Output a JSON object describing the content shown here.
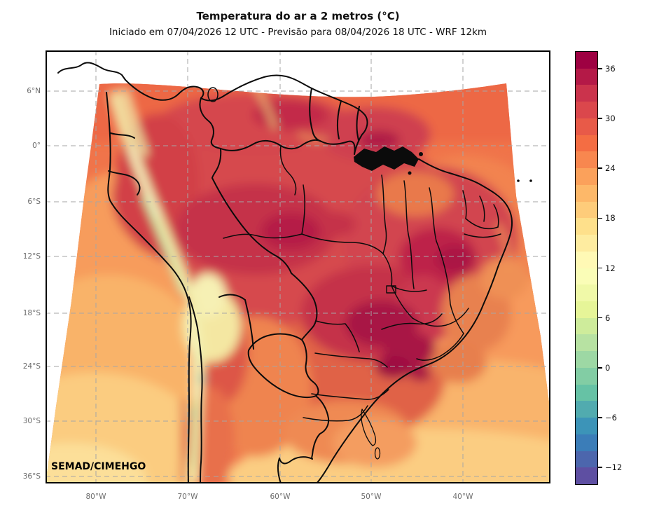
{
  "title": "Temperatura do ar a 2 metros (°C)",
  "subtitle": "Iniciado em 07/04/2026 12 UTC - Previsão para 08/04/2026 18 UTC - WRF 12km",
  "watermark": "SEMAD/CIMEHGO",
  "axes": {
    "lat_ticks": [
      "6°N",
      "0°",
      "6°S",
      "12°S",
      "18°S",
      "24°S",
      "30°S",
      "36°S"
    ],
    "lon_ticks": [
      "80°W",
      "70°W",
      "60°W",
      "50°W",
      "40°W"
    ]
  },
  "colorbar": {
    "unit": "°C",
    "max": 38,
    "min": -14,
    "step": 2,
    "ticks": [
      36,
      30,
      24,
      18,
      12,
      6,
      0,
      -6,
      -12
    ],
    "band_colors_top_to_bottom": [
      "#9e0142",
      "#b41947",
      "#cb334c",
      "#db474c",
      "#e85a48",
      "#f46d43",
      "#f8874f",
      "#fba15b",
      "#fdb869",
      "#fecc7a",
      "#fee08b",
      "#feeca0",
      "#fff9b5",
      "#fafdb7",
      "#f0f9a8",
      "#e6f598",
      "#ceec9b",
      "#b7e2a2",
      "#9dd8a4",
      "#82cda4",
      "#66c2a5",
      "#51abaf",
      "#3c94b8",
      "#3b7db8",
      "#4c66ad",
      "#5e4fa2"
    ]
  },
  "map": {
    "variable": "Temperatura do ar a 2 metros",
    "unit": "°C",
    "model": "WRF 12km",
    "init_time": "07/04/2026 12 UTC",
    "valid_time": "08/04/2026 18 UTC"
  }
}
